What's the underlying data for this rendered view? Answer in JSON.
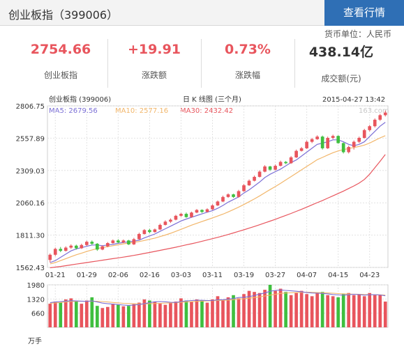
{
  "header": {
    "title": "创业板指（399006）",
    "view_button": "查看行情"
  },
  "currency_unit": "货币单位：人民币",
  "stats": [
    {
      "value": "2754.66",
      "label": "创业板指",
      "color": "#e8555d"
    },
    {
      "value": "+19.91",
      "label": "涨跌额",
      "color": "#e8555d"
    },
    {
      "value": "0.73%",
      "label": "涨跌幅",
      "color": "#e8555d"
    },
    {
      "value": "438.14亿",
      "label": "成交额(元)",
      "color": "#333333"
    }
  ],
  "chart_header": {
    "left": "创业板指 (399006)",
    "center": "日 K 线图 (三个月)",
    "right": "2015-04-27 13:42",
    "watermark": "163.com"
  },
  "ma_labels": [
    {
      "text": "MA5: 2679.56",
      "color": "#7b6fd6"
    },
    {
      "text": "MA10: 2577.16",
      "color": "#f2b66a"
    },
    {
      "text": "MA30: 2432.42",
      "color": "#e8555d"
    }
  ],
  "chart_data": [
    {
      "type": "candlestick",
      "title": "日 K 线图 (三个月)",
      "y_ticks": [
        1562.43,
        1811.3,
        2060.16,
        2309.03,
        2557.89,
        2806.75
      ],
      "ylim": [
        1562.43,
        2806.75
      ],
      "x_tick_labels": [
        "01-21",
        "01-29",
        "02-06",
        "02-16",
        "03-03",
        "03-11",
        "03-19",
        "03-27",
        "04-07",
        "04-15",
        "04-23"
      ],
      "x_tick_index": [
        1,
        7,
        13,
        19,
        25,
        31,
        37,
        43,
        49,
        55,
        61
      ],
      "colors": {
        "up": "#e8555d",
        "down": "#3fbf3f",
        "ma5": "#7b6fd6",
        "ma10": "#f2b66a",
        "ma30": "#e8555d"
      },
      "candles": [
        [
          1620,
          1660,
          1600,
          1670
        ],
        [
          1660,
          1705,
          1650,
          1715
        ],
        [
          1705,
          1690,
          1680,
          1720
        ],
        [
          1690,
          1715,
          1685,
          1725
        ],
        [
          1715,
          1730,
          1705,
          1740
        ],
        [
          1730,
          1710,
          1700,
          1738
        ],
        [
          1710,
          1735,
          1705,
          1745
        ],
        [
          1735,
          1760,
          1728,
          1768
        ],
        [
          1760,
          1745,
          1735,
          1770
        ],
        [
          1745,
          1700,
          1690,
          1750
        ],
        [
          1700,
          1725,
          1695,
          1732
        ],
        [
          1725,
          1750,
          1718,
          1758
        ],
        [
          1750,
          1770,
          1745,
          1778
        ],
        [
          1770,
          1755,
          1748,
          1780
        ],
        [
          1755,
          1770,
          1750,
          1778
        ],
        [
          1770,
          1740,
          1735,
          1775
        ],
        [
          1740,
          1780,
          1735,
          1790
        ],
        [
          1780,
          1820,
          1775,
          1830
        ],
        [
          1820,
          1850,
          1815,
          1858
        ],
        [
          1850,
          1835,
          1825,
          1860
        ],
        [
          1835,
          1855,
          1830,
          1862
        ],
        [
          1855,
          1890,
          1850,
          1900
        ],
        [
          1890,
          1915,
          1885,
          1925
        ],
        [
          1915,
          1930,
          1905,
          1940
        ],
        [
          1930,
          1960,
          1925,
          1968
        ],
        [
          1960,
          1975,
          1952,
          1982
        ],
        [
          1975,
          1950,
          1945,
          1985
        ],
        [
          1950,
          1985,
          1945,
          1992
        ],
        [
          1985,
          2005,
          1980,
          2012
        ],
        [
          2005,
          1990,
          1982,
          2010
        ],
        [
          1990,
          2010,
          1985,
          2018
        ],
        [
          2010,
          2040,
          2005,
          2048
        ],
        [
          2040,
          2070,
          2035,
          2078
        ],
        [
          2070,
          2105,
          2065,
          2115
        ],
        [
          2105,
          2125,
          2098,
          2133
        ],
        [
          2125,
          2105,
          2098,
          2130
        ],
        [
          2105,
          2150,
          2100,
          2160
        ],
        [
          2150,
          2195,
          2145,
          2205
        ],
        [
          2195,
          2230,
          2190,
          2240
        ],
        [
          2230,
          2260,
          2225,
          2270
        ],
        [
          2260,
          2300,
          2255,
          2310
        ],
        [
          2300,
          2340,
          2295,
          2350
        ],
        [
          2340,
          2315,
          2305,
          2345
        ],
        [
          2315,
          2345,
          2310,
          2355
        ],
        [
          2345,
          2375,
          2340,
          2385
        ],
        [
          2375,
          2365,
          2358,
          2382
        ],
        [
          2365,
          2410,
          2360,
          2420
        ],
        [
          2410,
          2460,
          2405,
          2470
        ],
        [
          2460,
          2480,
          2455,
          2490
        ],
        [
          2480,
          2530,
          2475,
          2540
        ],
        [
          2530,
          2550,
          2520,
          2560
        ],
        [
          2550,
          2570,
          2545,
          2580
        ],
        [
          2570,
          2480,
          2470,
          2578
        ],
        [
          2480,
          2560,
          2475,
          2570
        ],
        [
          2560,
          2575,
          2550,
          2585
        ],
        [
          2575,
          2520,
          2515,
          2580
        ],
        [
          2520,
          2450,
          2440,
          2525
        ],
        [
          2450,
          2490,
          2440,
          2500
        ],
        [
          2490,
          2530,
          2470,
          2540
        ],
        [
          2530,
          2560,
          2520,
          2570
        ],
        [
          2560,
          2620,
          2555,
          2630
        ],
        [
          2620,
          2650,
          2610,
          2660
        ],
        [
          2650,
          2700,
          2640,
          2710
        ],
        [
          2700,
          2735,
          2690,
          2745
        ],
        [
          2735,
          2755,
          2725,
          2770
        ]
      ],
      "ma5": [
        1600,
        1615,
        1640,
        1665,
        1690,
        1705,
        1715,
        1725,
        1735,
        1735,
        1730,
        1735,
        1740,
        1748,
        1755,
        1760,
        1765,
        1772,
        1790,
        1805,
        1820,
        1840,
        1860,
        1880,
        1900,
        1920,
        1935,
        1948,
        1962,
        1975,
        1988,
        2000,
        2018,
        2040,
        2065,
        2085,
        2105,
        2135,
        2160,
        2190,
        2220,
        2255,
        2280,
        2300,
        2320,
        2345,
        2370,
        2390,
        2420,
        2450,
        2480,
        2510,
        2520,
        2530,
        2545,
        2545,
        2530,
        2510,
        2500,
        2510,
        2530,
        2570,
        2610,
        2650,
        2680
      ],
      "ma10": [
        1590,
        1600,
        1615,
        1630,
        1645,
        1660,
        1672,
        1685,
        1697,
        1708,
        1716,
        1722,
        1730,
        1737,
        1744,
        1750,
        1756,
        1762,
        1770,
        1779,
        1788,
        1800,
        1812,
        1825,
        1840,
        1856,
        1872,
        1888,
        1902,
        1916,
        1930,
        1944,
        1958,
        1973,
        1990,
        2008,
        2027,
        2047,
        2068,
        2090,
        2113,
        2138,
        2162,
        2185,
        2210,
        2236,
        2262,
        2288,
        2314,
        2340,
        2366,
        2392,
        2410,
        2428,
        2446,
        2460,
        2470,
        2478,
        2486,
        2494,
        2505,
        2520,
        2540,
        2560,
        2577
      ],
      "ma30": [
        1560,
        1565,
        1570,
        1576,
        1582,
        1588,
        1594,
        1600,
        1606,
        1612,
        1618,
        1624,
        1630,
        1636,
        1642,
        1648,
        1655,
        1662,
        1670,
        1678,
        1686,
        1694,
        1702,
        1710,
        1718,
        1727,
        1736,
        1745,
        1754,
        1764,
        1774,
        1784,
        1794,
        1805,
        1816,
        1828,
        1840,
        1852,
        1865,
        1878,
        1891,
        1905,
        1919,
        1933,
        1948,
        1963,
        1978,
        1994,
        2010,
        2027,
        2044,
        2061,
        2078,
        2096,
        2114,
        2132,
        2150,
        2170,
        2190,
        2212,
        2240,
        2280,
        2330,
        2380,
        2432
      ]
    },
    {
      "type": "bar",
      "title": "",
      "y_ticks": [
        660,
        1320,
        1980
      ],
      "ylim": [
        0,
        1980
      ],
      "unit": "万手",
      "colors": {
        "up": "#e8555d",
        "down": "#3fbf3f",
        "ma5": "#7b6fd6",
        "ma10": "#f2b66a"
      },
      "volumes": [
        1100,
        1200,
        1150,
        1300,
        1350,
        1200,
        1100,
        1250,
        1400,
        1000,
        900,
        950,
        1100,
        1050,
        980,
        1000,
        1080,
        1150,
        1300,
        1250,
        1200,
        1100,
        1050,
        1150,
        1200,
        1350,
        1250,
        1200,
        1300,
        1250,
        1150,
        1300,
        1450,
        1250,
        1400,
        1500,
        1350,
        1550,
        1700,
        1650,
        1600,
        1750,
        1980,
        1700,
        1800,
        1650,
        1500,
        1600,
        1700,
        1550,
        1450,
        1600,
        1650,
        1500,
        1450,
        1400,
        1550,
        1600,
        1500,
        1550,
        1450,
        1600,
        1500,
        1500,
        1200
      ],
      "up_flags": [
        1,
        1,
        0,
        1,
        1,
        0,
        1,
        1,
        0,
        0,
        1,
        1,
        1,
        0,
        1,
        0,
        1,
        1,
        1,
        0,
        1,
        1,
        1,
        1,
        1,
        1,
        0,
        1,
        1,
        0,
        1,
        1,
        1,
        1,
        1,
        0,
        1,
        1,
        1,
        1,
        1,
        1,
        0,
        1,
        1,
        0,
        1,
        1,
        1,
        1,
        1,
        1,
        0,
        1,
        1,
        0,
        0,
        1,
        1,
        1,
        1,
        1,
        1,
        1,
        1
      ],
      "ma5": [
        1150,
        1180,
        1200,
        1220,
        1240,
        1230,
        1220,
        1210,
        1230,
        1180,
        1130,
        1100,
        1080,
        1060,
        1040,
        1020,
        1040,
        1060,
        1100,
        1150,
        1190,
        1200,
        1190,
        1170,
        1160,
        1200,
        1230,
        1250,
        1260,
        1260,
        1250,
        1250,
        1280,
        1290,
        1310,
        1340,
        1390,
        1400,
        1430,
        1480,
        1550,
        1600,
        1680,
        1720,
        1740,
        1720,
        1700,
        1680,
        1660,
        1620,
        1600,
        1590,
        1580,
        1560,
        1530,
        1510,
        1500,
        1520,
        1540,
        1530,
        1500,
        1520,
        1520,
        1510,
        1470
      ],
      "ma10": [
        1120,
        1140,
        1160,
        1180,
        1200,
        1210,
        1215,
        1215,
        1220,
        1210,
        1200,
        1180,
        1160,
        1140,
        1120,
        1110,
        1100,
        1090,
        1090,
        1100,
        1110,
        1120,
        1130,
        1140,
        1150,
        1165,
        1180,
        1195,
        1210,
        1220,
        1230,
        1240,
        1250,
        1260,
        1270,
        1290,
        1310,
        1330,
        1360,
        1390,
        1420,
        1460,
        1500,
        1540,
        1580,
        1600,
        1610,
        1620,
        1630,
        1640,
        1630,
        1620,
        1610,
        1600,
        1590,
        1575,
        1560,
        1550,
        1545,
        1540,
        1530,
        1525,
        1520,
        1515,
        1500
      ]
    }
  ]
}
